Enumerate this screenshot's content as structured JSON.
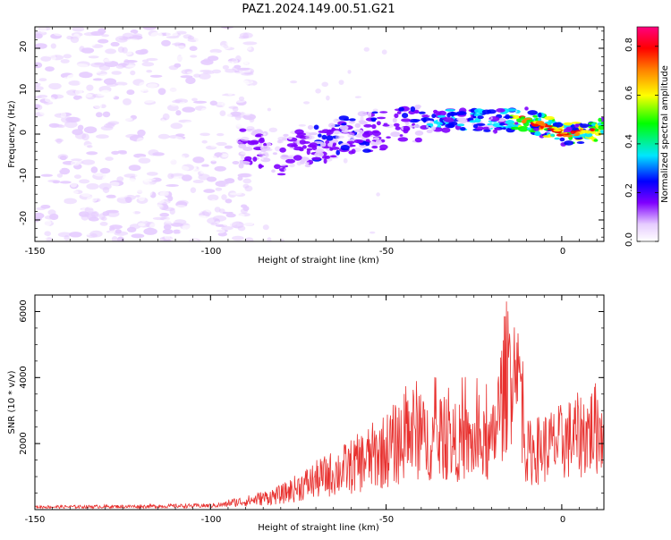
{
  "title": "PAZ1.2024.149.00.51.G21",
  "chart_data": [
    {
      "type": "heatmap",
      "xlabel": "Height of straight line (km)",
      "ylabel": "Frequency (Hz)",
      "xlim": [
        -150,
        12
      ],
      "ylim": [
        -25,
        25
      ],
      "xticks": [
        "-150",
        "-100",
        "-50",
        "0"
      ],
      "yticks": [
        "-20",
        "-10",
        "0",
        "10",
        "20"
      ],
      "colorbar": {
        "label": "Normalized spectral amplitude",
        "range": [
          0.0,
          0.88
        ],
        "ticks": [
          "0.0",
          "0.2",
          "0.4",
          "0.6",
          "0.8"
        ],
        "colormap": [
          "#ffffff",
          "#e6ccff",
          "#8000ff",
          "#0000ff",
          "#00e6ff",
          "#00ff00",
          "#ffff00",
          "#ff8000",
          "#ff0000",
          "#ff0080"
        ]
      },
      "ridge": [
        {
          "x": -90,
          "f": -3
        },
        {
          "x": -80,
          "f": -5
        },
        {
          "x": -70,
          "f": -2.5
        },
        {
          "x": -60,
          "f": 0
        },
        {
          "x": -50,
          "f": 1
        },
        {
          "x": -40,
          "f": 3
        },
        {
          "x": -30,
          "f": 3.5
        },
        {
          "x": -20,
          "f": 3
        },
        {
          "x": -10,
          "f": 3.5
        },
        {
          "x": 0,
          "f": 0
        },
        {
          "x": 12,
          "f": 1
        }
      ]
    },
    {
      "type": "line",
      "xlabel": "Height of straight line (km)",
      "ylabel": "SNR (10 * v/v)",
      "xlim": [
        -150,
        12
      ],
      "ylim": [
        0,
        6500
      ],
      "xticks": [
        "-150",
        "-100",
        "-50",
        "0"
      ],
      "yticks": [
        "2000",
        "4000",
        "6000"
      ],
      "line_color": "#e8312f",
      "envelope": [
        {
          "x": -150,
          "y": 100
        },
        {
          "x": -120,
          "y": 120
        },
        {
          "x": -100,
          "y": 150
        },
        {
          "x": -90,
          "y": 250
        },
        {
          "x": -80,
          "y": 450
        },
        {
          "x": -70,
          "y": 900
        },
        {
          "x": -60,
          "y": 1300
        },
        {
          "x": -50,
          "y": 1800
        },
        {
          "x": -40,
          "y": 2500
        },
        {
          "x": -30,
          "y": 2400
        },
        {
          "x": -20,
          "y": 2200
        },
        {
          "x": -13,
          "y": 6400
        },
        {
          "x": -10,
          "y": 2000
        },
        {
          "x": 0,
          "y": 2400
        },
        {
          "x": 12,
          "y": 3000
        }
      ]
    }
  ]
}
